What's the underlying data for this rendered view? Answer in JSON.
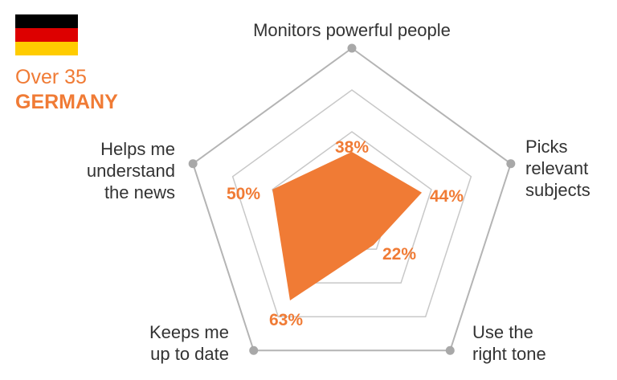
{
  "header": {
    "flag": {
      "name": "germany-flag",
      "colors": [
        "#000000",
        "#dd0000",
        "#ffcc00"
      ]
    },
    "subtitle": "Over 35",
    "title": "GERMANY"
  },
  "colors": {
    "accent": "#f07b35",
    "grid": "#c8c8c8",
    "outer": "#b4b4b4",
    "marker": "#a8a8a8",
    "text": "#333333"
  },
  "chart_data": {
    "type": "radar",
    "axes": [
      {
        "label": [
          "Monitors powerful people"
        ],
        "value": 38
      },
      {
        "label": [
          "Picks",
          "relevant",
          "subjects"
        ],
        "value": 44
      },
      {
        "label": [
          "Use the",
          "right tone"
        ],
        "value": 22
      },
      {
        "label": [
          "Keeps me",
          "up to date"
        ],
        "value": 63
      },
      {
        "label": [
          "Helps me",
          "understand",
          "the news"
        ],
        "value": 50
      }
    ],
    "value_labels": [
      "38%",
      "44%",
      "22%",
      "63%",
      "50%"
    ],
    "rmax": 100,
    "grid_levels": 4,
    "grid": true,
    "legend": "none"
  }
}
